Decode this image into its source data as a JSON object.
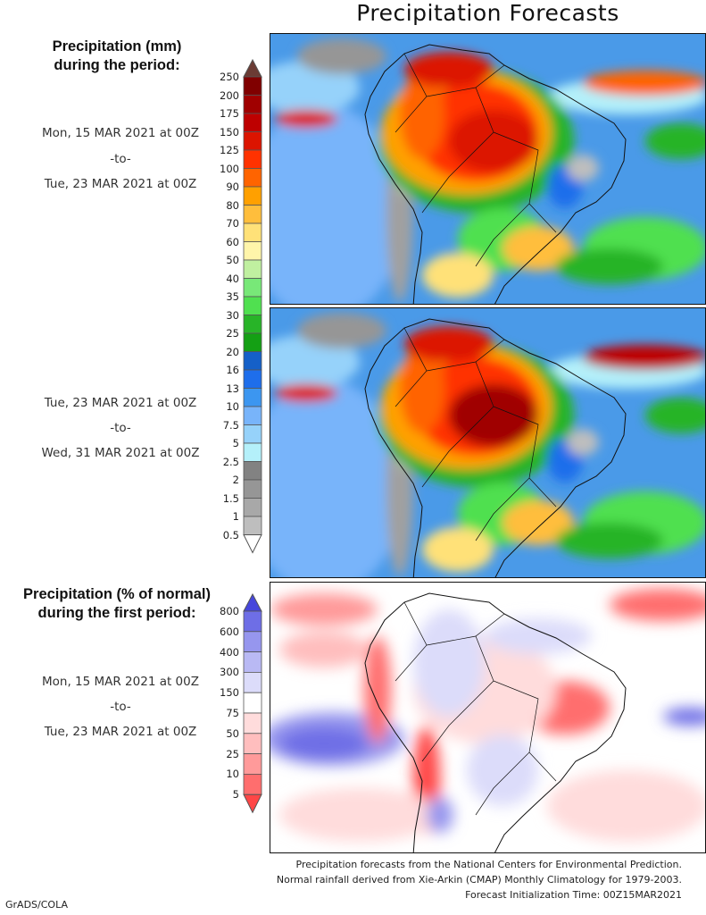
{
  "title": "Precipitation Forecasts",
  "left_header_mm": [
    "Precipitation (mm)",
    "during the period:"
  ],
  "period1": {
    "from": "Mon, 15 MAR 2021 at 00Z",
    "sep": "-to-",
    "to": "Tue, 23 MAR 2021 at 00Z"
  },
  "period2": {
    "from": "Tue, 23 MAR 2021 at 00Z",
    "sep": "-to-",
    "to": "Wed, 31 MAR 2021 at 00Z"
  },
  "left_header_pct": [
    "Precipitation (% of normal)",
    "during the first period:"
  ],
  "period3": {
    "from": "Mon, 15 MAR 2021 at 00Z",
    "sep": "-to-",
    "to": "Tue, 23 MAR 2021 at 00Z"
  },
  "chart_data": [
    {
      "type": "heatmap",
      "title": "Precipitation (mm) colorbar",
      "levels": [
        "250",
        "200",
        "175",
        "150",
        "125",
        "100",
        "90",
        "80",
        "70",
        "60",
        "50",
        "40",
        "35",
        "30",
        "25",
        "20",
        "16",
        "13",
        "10",
        "7.5",
        "5",
        "2.5",
        "2",
        "1.5",
        "1",
        "0.5"
      ],
      "colors_top_to_bottom": [
        "#6b3b34",
        "#800000",
        "#a00000",
        "#be0000",
        "#dc1400",
        "#ff3200",
        "#ff6400",
        "#ffa000",
        "#ffbe3c",
        "#ffe178",
        "#fff5aa",
        "#c0f0a0",
        "#78e878",
        "#50e050",
        "#28b428",
        "#14a014",
        "#1560c8",
        "#1e6eeb",
        "#3c96f0",
        "#78b4fa",
        "#96d2fa",
        "#b4f0fa",
        "#828282",
        "#969696",
        "#a8a8a8",
        "#bebebe",
        "#ffffff"
      ]
    },
    {
      "type": "heatmap",
      "title": "Precipitation (% of normal) colorbar",
      "levels": [
        "800",
        "600",
        "400",
        "300",
        "150",
        "75",
        "50",
        "25",
        "10",
        "5"
      ],
      "colors_top_to_bottom": [
        "#4646dc",
        "#6e6ee6",
        "#9696ee",
        "#b9b9f4",
        "#dcdcfa",
        "#ffffff",
        "#ffdcdc",
        "#ffbebe",
        "#ff9a9a",
        "#ff6e6e",
        "#ff4646"
      ]
    }
  ],
  "footer": [
    "Precipitation forecasts from the National Centers for Environmental Prediction.",
    "Normal rainfall derived from Xie-Arkin (CMAP) Monthly Climatology for 1979-2003.",
    "Forecast Initialization Time: 00Z15MAR2021"
  ],
  "credit": "GrADS/COLA"
}
